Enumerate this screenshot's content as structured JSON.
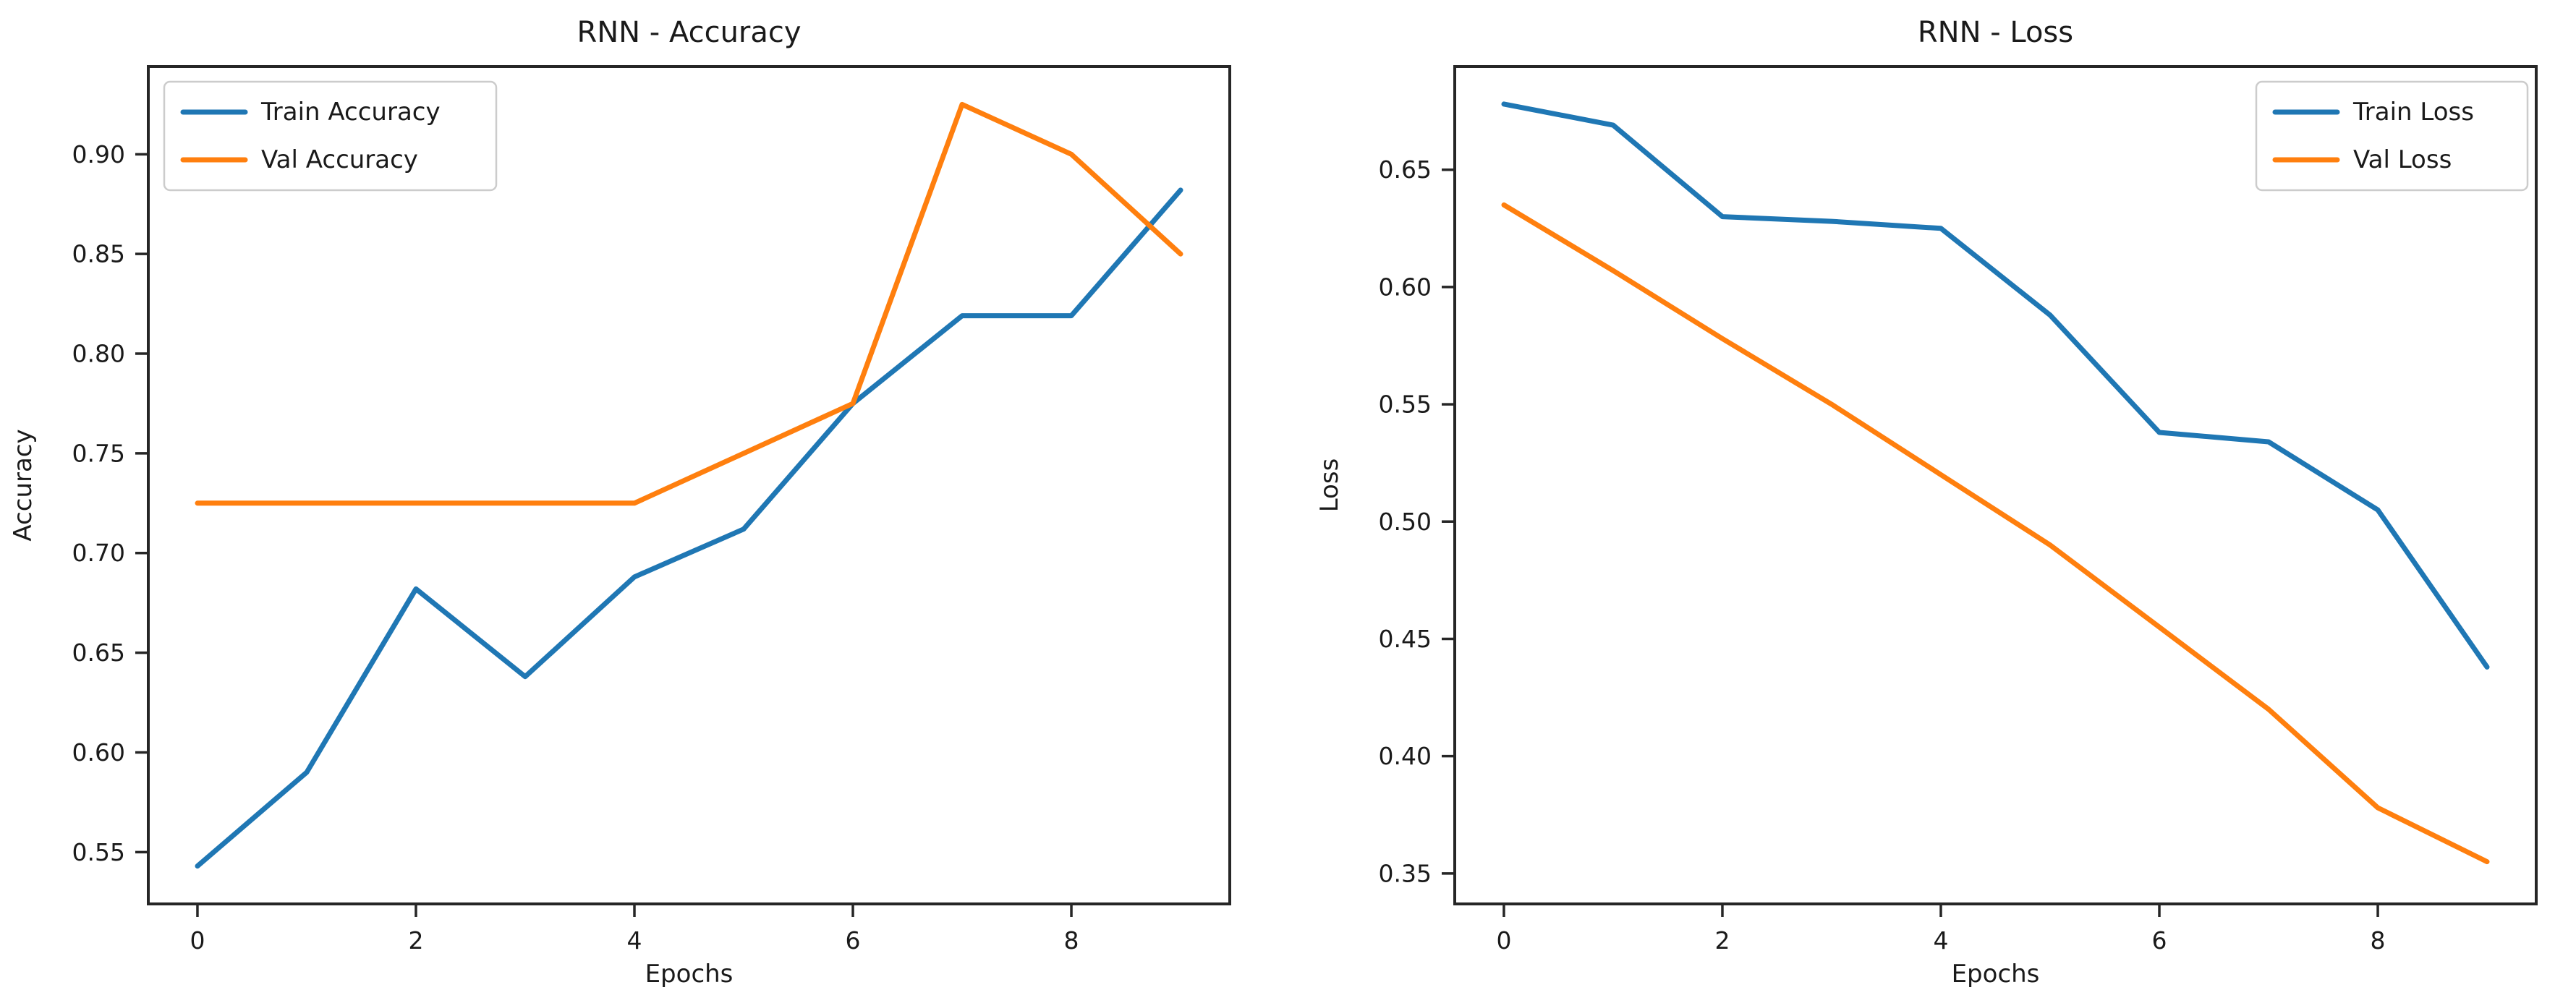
{
  "figure": {
    "background": "#ffffff"
  },
  "colors": {
    "train": "#1f77b4",
    "val": "#ff7f0e",
    "axis": "#262626",
    "text": "#1a1a1a",
    "legend_border": "#cccccc",
    "legend_bg": "#ffffff"
  },
  "chart_data": [
    {
      "type": "line",
      "title": "RNN - Accuracy",
      "xlabel": "Epochs",
      "ylabel": "Accuracy",
      "x": [
        0,
        1,
        2,
        3,
        4,
        5,
        6,
        7,
        8,
        9
      ],
      "series": [
        {
          "name": "Train Accuracy",
          "color_key": "train",
          "values": [
            0.543,
            0.59,
            0.682,
            0.638,
            0.688,
            0.712,
            0.775,
            0.819,
            0.819,
            0.882
          ]
        },
        {
          "name": "Val Accuracy",
          "color_key": "val",
          "values": [
            0.725,
            0.725,
            0.725,
            0.725,
            0.725,
            0.75,
            0.775,
            0.925,
            0.9,
            0.85
          ]
        }
      ],
      "xlim": [
        -0.45,
        9.45
      ],
      "ylim": [
        0.524,
        0.944
      ],
      "xticks": [
        0,
        2,
        4,
        6,
        8
      ],
      "yticks": [
        0.55,
        0.6,
        0.65,
        0.7,
        0.75,
        0.8,
        0.85,
        0.9
      ],
      "legend_position": "upper-left",
      "grid": false
    },
    {
      "type": "line",
      "title": "RNN - Loss",
      "xlabel": "Epochs",
      "ylabel": "Loss",
      "x": [
        0,
        1,
        2,
        3,
        4,
        5,
        6,
        7,
        8,
        9
      ],
      "series": [
        {
          "name": "Train Loss",
          "color_key": "train",
          "values": [
            0.678,
            0.669,
            0.63,
            0.628,
            0.625,
            0.588,
            0.538,
            0.534,
            0.505,
            0.438
          ]
        },
        {
          "name": "Val Loss",
          "color_key": "val",
          "values": [
            0.635,
            0.607,
            0.578,
            0.55,
            0.52,
            0.49,
            0.455,
            0.42,
            0.378,
            0.355
          ]
        }
      ],
      "xlim": [
        -0.45,
        9.45
      ],
      "ylim": [
        0.337,
        0.694
      ],
      "xticks": [
        0,
        2,
        4,
        6,
        8
      ],
      "yticks": [
        0.35,
        0.4,
        0.45,
        0.5,
        0.55,
        0.6,
        0.65
      ],
      "legend_position": "upper-right",
      "grid": false
    }
  ]
}
